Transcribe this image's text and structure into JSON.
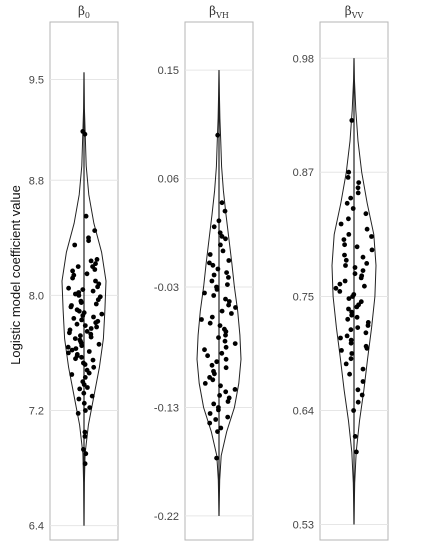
{
  "chart_data": {
    "type": "violin",
    "ylabel": "Logistic model coefficient value",
    "grid": true,
    "panels": [
      {
        "title_base": "β",
        "title_sub": "0",
        "ylim": [
          6.3,
          9.9
        ],
        "yticks": [
          6.4,
          7.2,
          8.0,
          8.8,
          9.5
        ],
        "ytick_labels": [
          "6.4",
          "7.2",
          "8.0",
          "8.8",
          "9.5"
        ],
        "range": [
          6.4,
          9.55
        ],
        "violin": [
          [
            6.4,
            0.0
          ],
          [
            6.7,
            0.02
          ],
          [
            6.9,
            0.05
          ],
          [
            7.1,
            0.2
          ],
          [
            7.3,
            0.45
          ],
          [
            7.5,
            0.7
          ],
          [
            7.7,
            0.88
          ],
          [
            7.9,
            0.95
          ],
          [
            8.1,
            1.0
          ],
          [
            8.3,
            0.8
          ],
          [
            8.5,
            0.45
          ],
          [
            8.7,
            0.22
          ],
          [
            8.9,
            0.1
          ],
          [
            9.1,
            0.06
          ],
          [
            9.3,
            0.02
          ],
          [
            9.55,
            0.0
          ]
        ],
        "points": [
          9.12,
          9.14,
          8.55,
          8.45,
          8.4,
          8.38,
          8.35,
          8.25,
          8.24,
          8.22,
          8.2,
          8.2,
          8.18,
          8.17,
          8.15,
          8.14,
          8.12,
          8.1,
          8.08,
          8.06,
          8.05,
          8.04,
          8.03,
          8.02,
          8.01,
          8.0,
          7.99,
          7.97,
          7.96,
          7.95,
          7.94,
          7.93,
          7.92,
          7.9,
          7.89,
          7.88,
          7.87,
          7.86,
          7.85,
          7.84,
          7.83,
          7.82,
          7.81,
          7.8,
          7.79,
          7.78,
          7.77,
          7.76,
          7.75,
          7.74,
          7.73,
          7.72,
          7.71,
          7.7,
          7.69,
          7.68,
          7.67,
          7.66,
          7.65,
          7.64,
          7.63,
          7.62,
          7.61,
          7.6,
          7.59,
          7.58,
          7.57,
          7.56,
          7.55,
          7.53,
          7.52,
          7.5,
          7.48,
          7.46,
          7.45,
          7.43,
          7.4,
          7.38,
          7.36,
          7.35,
          7.32,
          7.3,
          7.28,
          7.25,
          7.22,
          7.2,
          7.18,
          7.05,
          7.02,
          6.93,
          6.9,
          6.83
        ]
      },
      {
        "title_base": "β",
        "title_sub": "VH",
        "ylim": [
          -0.24,
          0.19
        ],
        "yticks": [
          -0.22,
          -0.13,
          -0.03,
          0.06,
          0.15
        ],
        "ytick_labels": [
          "-0.22",
          "-0.13",
          "-0.03",
          "0.06",
          "0.15"
        ],
        "range": [
          -0.22,
          0.15
        ],
        "violin": [
          [
            -0.22,
            0.0
          ],
          [
            -0.19,
            0.03
          ],
          [
            -0.17,
            0.1
          ],
          [
            -0.15,
            0.35
          ],
          [
            -0.13,
            0.7
          ],
          [
            -0.11,
            0.9
          ],
          [
            -0.09,
            1.0
          ],
          [
            -0.07,
            0.95
          ],
          [
            -0.05,
            0.85
          ],
          [
            -0.03,
            0.7
          ],
          [
            -0.01,
            0.58
          ],
          [
            0.01,
            0.45
          ],
          [
            0.03,
            0.32
          ],
          [
            0.05,
            0.2
          ],
          [
            0.07,
            0.12
          ],
          [
            0.09,
            0.08
          ],
          [
            0.11,
            0.04
          ],
          [
            0.13,
            0.02
          ],
          [
            0.15,
            0.0
          ]
        ],
        "points": [
          0.096,
          0.04,
          0.033,
          0.025,
          0.02,
          0.015,
          0.012,
          0.01,
          0.005,
          0.0,
          -0.003,
          -0.008,
          -0.01,
          -0.012,
          -0.015,
          -0.018,
          -0.02,
          -0.022,
          -0.025,
          -0.028,
          -0.03,
          -0.032,
          -0.035,
          -0.037,
          -0.04,
          -0.042,
          -0.045,
          -0.047,
          -0.05,
          -0.052,
          -0.055,
          -0.057,
          -0.06,
          -0.062,
          -0.065,
          -0.067,
          -0.07,
          -0.072,
          -0.075,
          -0.077,
          -0.08,
          -0.082,
          -0.085,
          -0.087,
          -0.09,
          -0.092,
          -0.095,
          -0.097,
          -0.1,
          -0.102,
          -0.105,
          -0.107,
          -0.11,
          -0.112,
          -0.115,
          -0.117,
          -0.12,
          -0.122,
          -0.125,
          -0.127,
          -0.13,
          -0.132,
          -0.135,
          -0.138,
          -0.14,
          -0.143,
          -0.147,
          -0.15,
          -0.172
        ]
      },
      {
        "title_base": "β",
        "title_sub": "VV",
        "ylim": [
          0.515,
          1.015
        ],
        "yticks": [
          0.53,
          0.64,
          0.75,
          0.87,
          0.98
        ],
        "ytick_labels": [
          "0.53",
          "0.64",
          "0.75",
          "0.87",
          "0.98"
        ],
        "range": [
          0.53,
          0.98
        ],
        "violin": [
          [
            0.53,
            0.0
          ],
          [
            0.57,
            0.03
          ],
          [
            0.6,
            0.1
          ],
          [
            0.63,
            0.25
          ],
          [
            0.66,
            0.45
          ],
          [
            0.69,
            0.62
          ],
          [
            0.72,
            0.8
          ],
          [
            0.75,
            0.95
          ],
          [
            0.78,
            1.0
          ],
          [
            0.81,
            0.9
          ],
          [
            0.84,
            0.6
          ],
          [
            0.87,
            0.35
          ],
          [
            0.9,
            0.18
          ],
          [
            0.93,
            0.08
          ],
          [
            0.96,
            0.02
          ],
          [
            0.98,
            0.0
          ]
        ],
        "points": [
          0.92,
          0.87,
          0.865,
          0.86,
          0.855,
          0.85,
          0.845,
          0.84,
          0.835,
          0.83,
          0.825,
          0.82,
          0.815,
          0.81,
          0.808,
          0.805,
          0.8,
          0.798,
          0.795,
          0.79,
          0.788,
          0.785,
          0.782,
          0.78,
          0.778,
          0.775,
          0.772,
          0.77,
          0.768,
          0.765,
          0.762,
          0.76,
          0.758,
          0.755,
          0.752,
          0.75,
          0.748,
          0.745,
          0.742,
          0.74,
          0.738,
          0.735,
          0.732,
          0.73,
          0.728,
          0.725,
          0.722,
          0.72,
          0.718,
          0.715,
          0.712,
          0.71,
          0.708,
          0.705,
          0.702,
          0.7,
          0.698,
          0.695,
          0.69,
          0.685,
          0.68,
          0.675,
          0.668,
          0.66,
          0.655,
          0.648,
          0.64,
          0.615,
          0.6
        ]
      }
    ]
  }
}
